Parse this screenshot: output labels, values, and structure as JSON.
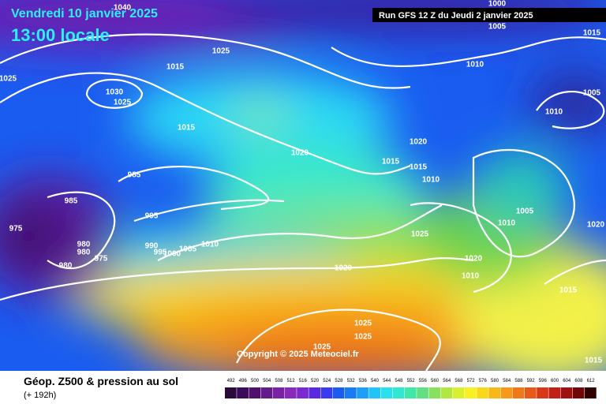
{
  "header": {
    "date": "Vendredi 10 janvier 2025",
    "time": "13:00 locale",
    "run": "Run GFS 12 Z du Jeudi 2 janvier 2025"
  },
  "copyright": "Copyright © 2025 Meteociel.fr",
  "footer": {
    "title": "Géop. Z500 & pression au sol",
    "lead": "(+ 192h)"
  },
  "scale": {
    "labels": [
      492,
      496,
      500,
      504,
      508,
      512,
      516,
      520,
      524,
      528,
      532,
      536,
      540,
      544,
      548,
      552,
      556,
      560,
      564,
      568,
      572,
      576,
      580,
      584,
      588,
      592,
      596,
      600,
      604,
      608,
      612
    ]
  },
  "isobars": {
    "labels": [
      "1040",
      "1025",
      "1015",
      "1030",
      "1025",
      "1025",
      "1015",
      "1020",
      "985",
      "985",
      "975",
      "980",
      "980",
      "975",
      "980",
      "995",
      "990",
      "995",
      "1000",
      "1005",
      "1010",
      "1020",
      "1005",
      "1010",
      "1015",
      "1005",
      "1010",
      "1020",
      "1015",
      "1015",
      "1010",
      "1005",
      "1010",
      "1020",
      "1025",
      "1020",
      "1010",
      "1015",
      "1025",
      "1025",
      "1025",
      "1015",
      "1000"
    ]
  }
}
